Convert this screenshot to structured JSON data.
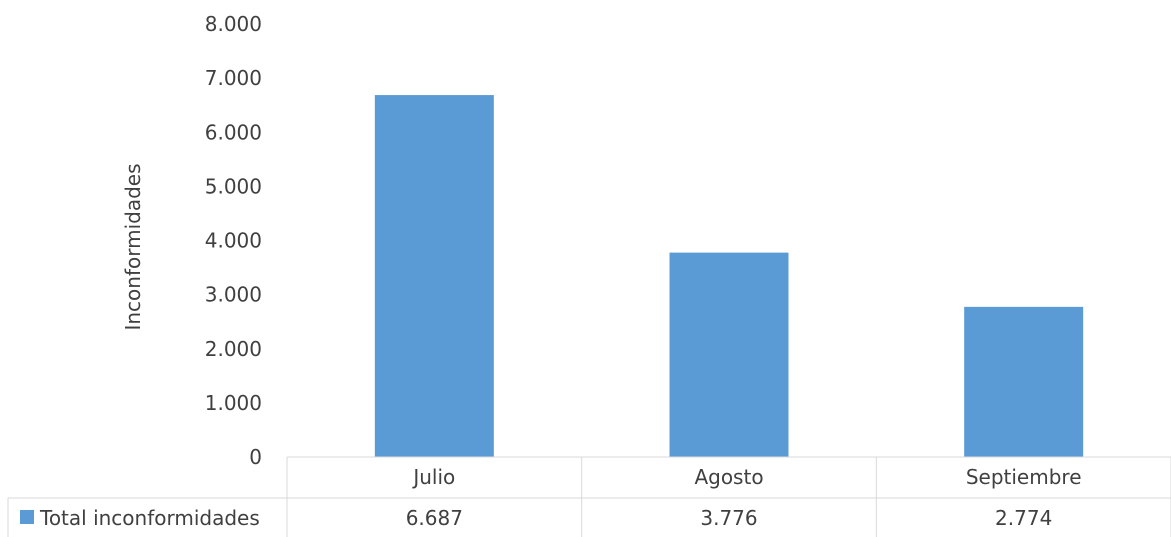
{
  "chart_data": {
    "type": "bar",
    "categories": [
      "Julio",
      "Agosto",
      "Septiembre"
    ],
    "series": [
      {
        "name": "Total inconformidades",
        "values": [
          6687,
          3776,
          2774
        ],
        "color": "#5B9BD5"
      }
    ],
    "data_table_values": [
      "6.687",
      "3.776",
      "2.774"
    ],
    "yticks": [
      "0",
      "1.000",
      "2.000",
      "3.000",
      "4.000",
      "5.000",
      "6.000",
      "7.000",
      "8.000"
    ],
    "ylim": [
      0,
      8000
    ],
    "ylabel": "Inconformidades",
    "xlabel": "",
    "title": "",
    "grid": false,
    "legend_placement": "data-table-left"
  }
}
